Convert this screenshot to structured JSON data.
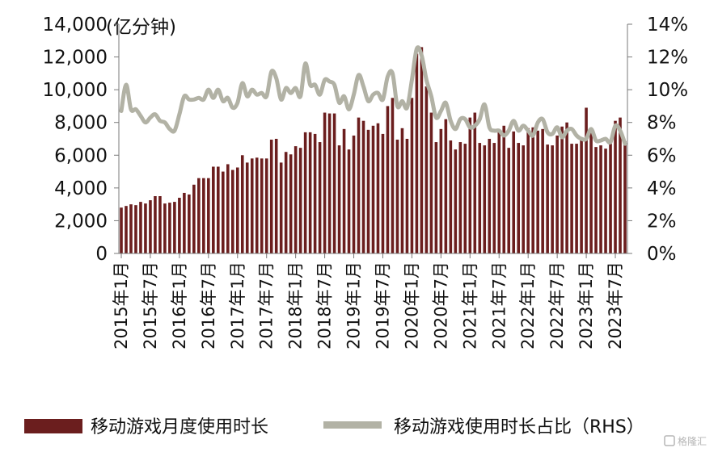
{
  "chart_data": {
    "type": "bar+line",
    "unit_label": "(亿分钟)",
    "left_axis": {
      "ylim": [
        0,
        14000
      ],
      "ticks": [
        "0",
        "2,000",
        "4,000",
        "6,000",
        "8,000",
        "10,000",
        "12,000",
        "14,000"
      ]
    },
    "right_axis": {
      "ylim": [
        0,
        14
      ],
      "ticks": [
        "0%",
        "2%",
        "4%",
        "6%",
        "8%",
        "10%",
        "12%",
        "14%"
      ]
    },
    "x_tick_labels": [
      "2015年1月",
      "2015年7月",
      "2016年1月",
      "2016年7月",
      "2017年1月",
      "2017年7月",
      "2018年1月",
      "2018年7月",
      "2019年1月",
      "2019年7月",
      "2020年1月",
      "2020年7月",
      "2021年1月",
      "2021年7月",
      "2022年1月",
      "2022年7月",
      "2023年1月",
      "2023年7月"
    ],
    "categories": [
      "2015-01",
      "2015-02",
      "2015-03",
      "2015-04",
      "2015-05",
      "2015-06",
      "2015-07",
      "2015-08",
      "2015-09",
      "2015-10",
      "2015-11",
      "2015-12",
      "2016-01",
      "2016-02",
      "2016-03",
      "2016-04",
      "2016-05",
      "2016-06",
      "2016-07",
      "2016-08",
      "2016-09",
      "2016-10",
      "2016-11",
      "2016-12",
      "2017-01",
      "2017-02",
      "2017-03",
      "2017-04",
      "2017-05",
      "2017-06",
      "2017-07",
      "2017-08",
      "2017-09",
      "2017-10",
      "2017-11",
      "2017-12",
      "2018-01",
      "2018-02",
      "2018-03",
      "2018-04",
      "2018-05",
      "2018-06",
      "2018-07",
      "2018-08",
      "2018-09",
      "2018-10",
      "2018-11",
      "2018-12",
      "2019-01",
      "2019-02",
      "2019-03",
      "2019-04",
      "2019-05",
      "2019-06",
      "2019-07",
      "2019-08",
      "2019-09",
      "2019-10",
      "2019-11",
      "2019-12",
      "2020-01",
      "2020-02",
      "2020-03",
      "2020-04",
      "2020-05",
      "2020-06",
      "2020-07",
      "2020-08",
      "2020-09",
      "2020-10",
      "2020-11",
      "2020-12",
      "2021-01",
      "2021-02",
      "2021-03",
      "2021-04",
      "2021-05",
      "2021-06",
      "2021-07",
      "2021-08",
      "2021-09",
      "2021-10",
      "2021-11",
      "2021-12",
      "2022-01",
      "2022-02",
      "2022-03",
      "2022-04",
      "2022-05",
      "2022-06",
      "2022-07",
      "2022-08",
      "2022-09",
      "2022-10",
      "2022-11",
      "2022-12",
      "2023-01",
      "2023-02",
      "2023-03",
      "2023-04",
      "2023-05",
      "2023-06",
      "2023-07",
      "2023-08",
      "2023-09"
    ],
    "series": [
      {
        "name": "移动游戏月度使用时长",
        "type": "bar",
        "axis": "left",
        "color": "#6b1e1e",
        "values": [
          2800,
          2900,
          3000,
          2950,
          3150,
          3050,
          3250,
          3500,
          3500,
          3050,
          3100,
          3150,
          3400,
          3700,
          3600,
          4200,
          4600,
          4600,
          4600,
          5300,
          5300,
          5000,
          5450,
          5100,
          5250,
          6000,
          5550,
          5800,
          5850,
          5800,
          5800,
          6950,
          7000,
          5550,
          6200,
          6050,
          6550,
          6450,
          7400,
          7400,
          7300,
          6800,
          8600,
          8550,
          8550,
          6600,
          7600,
          6350,
          7200,
          8300,
          8100,
          7550,
          7800,
          7950,
          7300,
          9000,
          9500,
          6950,
          7650,
          7000,
          9500,
          12200,
          12600,
          10200,
          8600,
          6800,
          7600,
          8200,
          6900,
          6350,
          6800,
          6700,
          8300,
          8600,
          6750,
          6600,
          7000,
          6750,
          7400,
          7800,
          6450,
          7450,
          6750,
          6600,
          7650,
          7700,
          7500,
          7600,
          6650,
          6600,
          7200,
          7750,
          8000,
          6700,
          6700,
          7100,
          8900,
          7450,
          6500,
          6600,
          6400,
          6700,
          8100,
          8300,
          6850
        ]
      },
      {
        "name": "移动游戏使用时长占比（RHS）",
        "type": "line",
        "axis": "right",
        "color": "#b2b2a5",
        "values": [
          8.7,
          10.3,
          8.8,
          8.8,
          8.4,
          8.0,
          8.3,
          8.5,
          8.1,
          8.0,
          7.6,
          7.5,
          8.5,
          9.6,
          9.4,
          9.4,
          9.5,
          9.4,
          10.0,
          9.5,
          10.0,
          9.3,
          9.5,
          8.9,
          9.2,
          10.4,
          9.6,
          10.0,
          9.7,
          9.8,
          9.6,
          11.1,
          10.7,
          9.4,
          10.1,
          9.8,
          10.1,
          9.6,
          11.6,
          10.3,
          10.3,
          9.7,
          10.6,
          10.5,
          10.3,
          9.2,
          9.6,
          8.8,
          9.7,
          10.9,
          10.2,
          9.3,
          9.7,
          9.8,
          9.4,
          10.8,
          11.0,
          9.0,
          9.3,
          8.9,
          10.6,
          12.5,
          12.1,
          10.6,
          9.6,
          8.3,
          8.7,
          9.2,
          8.1,
          7.6,
          8.2,
          8.2,
          7.7,
          7.8,
          8.2,
          9.1,
          7.7,
          7.5,
          7.5,
          7.2,
          7.5,
          8.1,
          7.5,
          7.8,
          7.5,
          7.2,
          8.0,
          8.2,
          7.4,
          7.3,
          7.7,
          7.1,
          7.5,
          7.6,
          7.2,
          7.0,
          7.0,
          7.6,
          6.9,
          6.9,
          7.0,
          6.8,
          7.8,
          7.5,
          6.7
        ]
      }
    ],
    "legend_position": "bottom",
    "grid": false
  },
  "watermark": "格隆汇"
}
